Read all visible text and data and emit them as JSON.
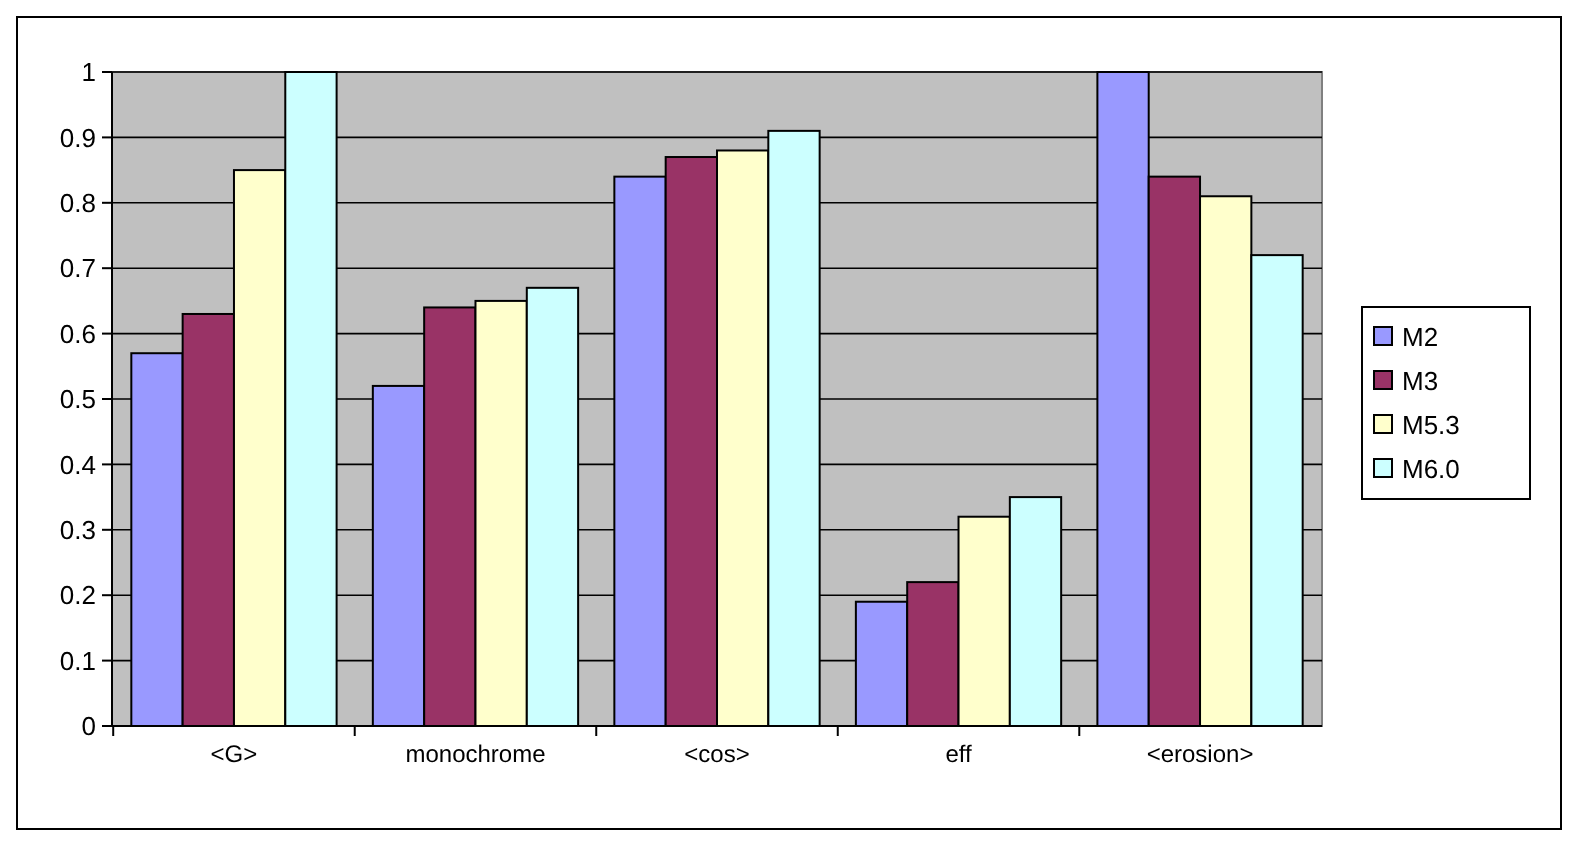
{
  "chart_data": {
    "type": "bar",
    "categories": [
      "<G>",
      "monochrome",
      "<cos>",
      "eff",
      "<erosion>"
    ],
    "series": [
      {
        "name": "M2",
        "color": "#9999ff",
        "values": [
          0.57,
          0.52,
          0.84,
          0.19,
          1.0
        ]
      },
      {
        "name": "M3",
        "color": "#993366",
        "values": [
          0.63,
          0.64,
          0.87,
          0.22,
          0.84
        ]
      },
      {
        "name": "M5.3",
        "color": "#ffffcc",
        "values": [
          0.85,
          0.65,
          0.88,
          0.32,
          0.81
        ]
      },
      {
        "name": "M6.0",
        "color": "#ccffff",
        "values": [
          1.0,
          0.67,
          0.91,
          0.35,
          0.72
        ]
      }
    ],
    "ylim": [
      0,
      1
    ],
    "yticks": [
      0,
      0.1,
      0.2,
      0.3,
      0.4,
      0.5,
      0.6,
      0.7,
      0.8,
      0.9,
      1
    ],
    "grid": "y",
    "legend": "right"
  }
}
